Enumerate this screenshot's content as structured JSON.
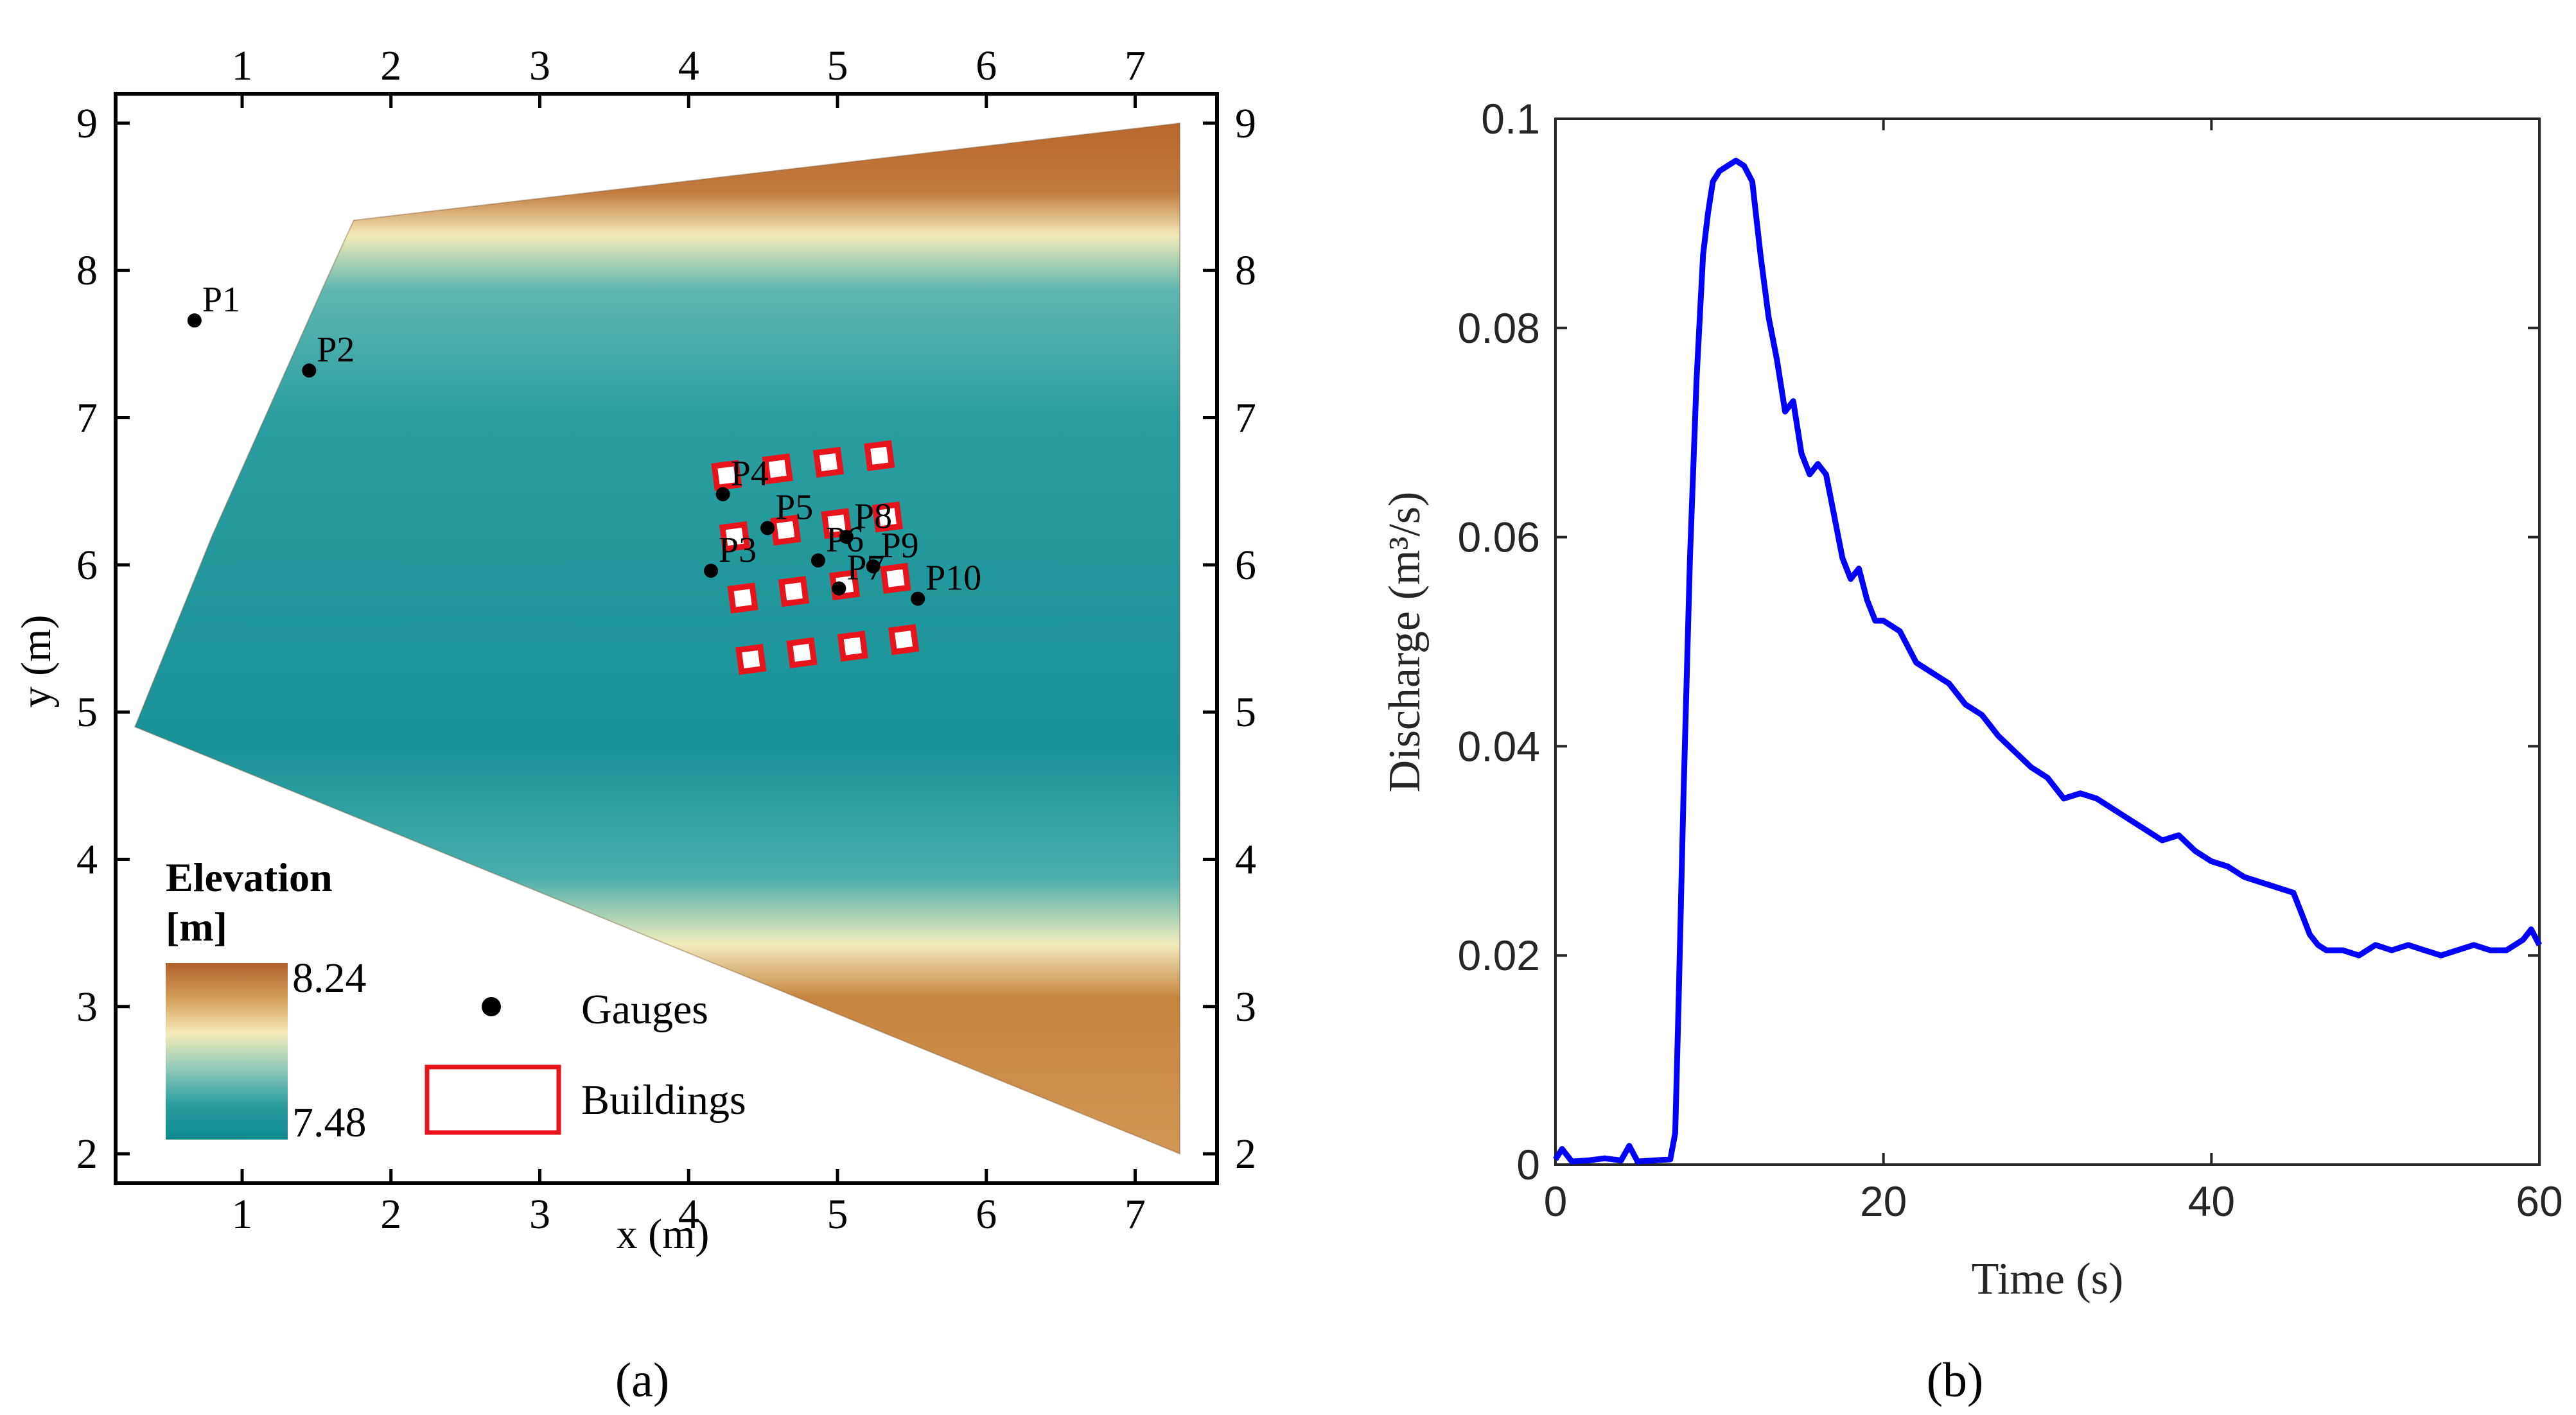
{
  "figure": {
    "panel_a_label": "(a)",
    "panel_b_label": "(b)"
  },
  "map": {
    "xlabel": "x (m)",
    "ylabel": "y (m)",
    "x_ticks": [
      1,
      2,
      3,
      4,
      5,
      6,
      7
    ],
    "y_ticks": [
      2,
      3,
      4,
      5,
      6,
      7,
      8,
      9
    ],
    "xlim": [
      0.15,
      7.55
    ],
    "ylim": [
      1.8,
      9.2
    ],
    "colorbar": {
      "title_line1": "Elevation",
      "title_line2": "[m]",
      "max_label": "8.24",
      "min_label": "7.48",
      "colors": [
        "#b0602a",
        "#d59e5a",
        "#f4ebb8",
        "#8fc9b9",
        "#2a9d9f",
        "#0d8a8f"
      ]
    },
    "legend": {
      "gauges_label": "Gauges",
      "buildings_label": "Buildings"
    },
    "building_color": "#e8141b",
    "gauges": [
      {
        "name": "P1",
        "x": 0.68,
        "y": 7.66
      },
      {
        "name": "P2",
        "x": 1.45,
        "y": 7.32
      },
      {
        "name": "P3",
        "x": 4.15,
        "y": 5.96
      },
      {
        "name": "P4",
        "x": 4.23,
        "y": 6.48
      },
      {
        "name": "P5",
        "x": 4.53,
        "y": 6.25
      },
      {
        "name": "P6",
        "x": 4.87,
        "y": 6.03
      },
      {
        "name": "P7",
        "x": 5.01,
        "y": 5.84
      },
      {
        "name": "P8",
        "x": 5.06,
        "y": 6.19
      },
      {
        "name": "P9",
        "x": 5.24,
        "y": 5.99
      },
      {
        "name": "P10",
        "x": 5.54,
        "y": 5.77
      }
    ]
  },
  "chart_data": {
    "type": "line",
    "xlabel": "Time (s)",
    "ylabel": "Discharge (m³/s)",
    "xlim": [
      0,
      60
    ],
    "ylim": [
      0,
      0.1
    ],
    "x_ticks": [
      "0",
      "20",
      "40",
      "60"
    ],
    "y_ticks": [
      "0",
      "0.02",
      "0.04",
      "0.06",
      "0.08",
      "0.1"
    ],
    "color": "#0000ff",
    "series": [
      {
        "x": [
          0,
          0.4,
          1,
          2,
          3,
          4,
          4.5,
          5,
          6,
          7,
          7.3,
          7.5,
          7.8,
          8.2,
          8.6,
          9,
          9.3,
          9.6,
          10,
          10.5,
          11,
          11.5,
          12,
          12.5,
          13,
          13.5,
          14,
          14.5,
          15,
          15.5,
          16,
          16.5,
          17,
          17.5,
          18,
          18.5,
          19,
          19.5,
          20,
          21,
          22,
          23,
          24,
          25,
          26,
          27,
          28,
          29,
          30,
          31,
          32,
          33,
          34,
          35,
          36,
          37,
          38,
          39,
          40,
          41,
          42,
          43,
          44,
          45,
          45.5,
          46,
          46.5,
          47,
          48,
          49,
          50,
          51,
          52,
          53,
          54,
          55,
          56,
          57,
          58,
          59,
          59.5,
          60
        ],
        "y": [
          0.0005,
          0.0015,
          0.0003,
          0.0004,
          0.0006,
          0.0004,
          0.0018,
          0.0003,
          0.0004,
          0.0005,
          0.003,
          0.015,
          0.035,
          0.058,
          0.075,
          0.087,
          0.091,
          0.094,
          0.095,
          0.0955,
          0.096,
          0.0955,
          0.094,
          0.087,
          0.081,
          0.077,
          0.072,
          0.073,
          0.068,
          0.066,
          0.067,
          0.066,
          0.062,
          0.058,
          0.056,
          0.057,
          0.054,
          0.052,
          0.052,
          0.051,
          0.048,
          0.047,
          0.046,
          0.044,
          0.043,
          0.041,
          0.0395,
          0.038,
          0.037,
          0.035,
          0.0355,
          0.035,
          0.034,
          0.033,
          0.032,
          0.031,
          0.0315,
          0.03,
          0.029,
          0.0285,
          0.0275,
          0.027,
          0.0265,
          0.026,
          0.024,
          0.022,
          0.021,
          0.0205,
          0.0205,
          0.02,
          0.021,
          0.0205,
          0.021,
          0.0205,
          0.02,
          0.0205,
          0.021,
          0.0205,
          0.0205,
          0.0215,
          0.0225,
          0.021
        ]
      }
    ]
  }
}
